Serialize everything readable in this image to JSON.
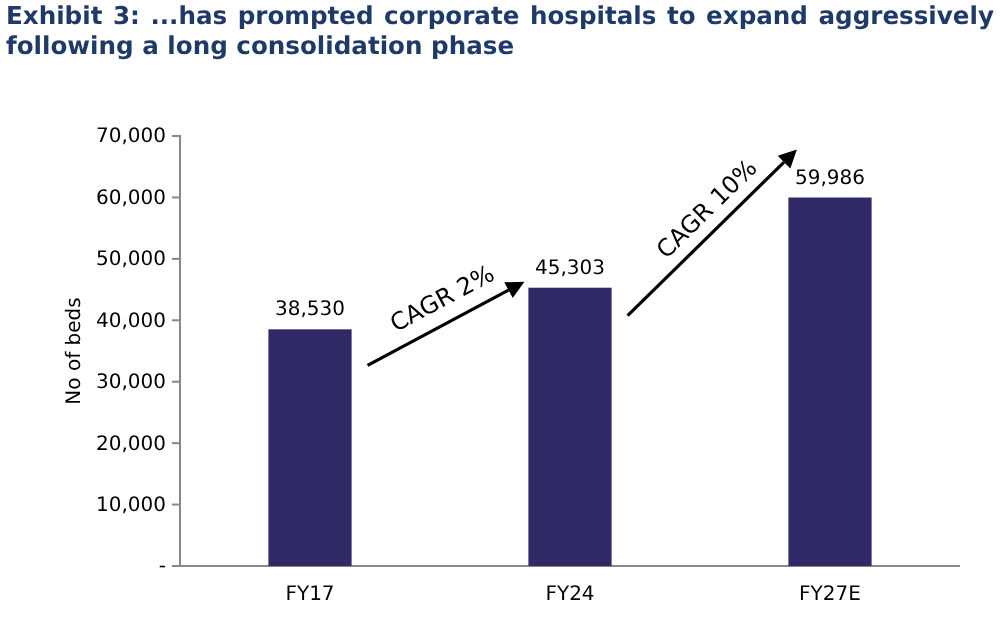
{
  "chart_data": {
    "type": "bar",
    "title": "Exhibit 3: ...has prompted corporate hospitals to expand aggressively following a long consolidation phase",
    "ylabel": "No of beds",
    "categories": [
      "FY17",
      "FY24",
      "FY27E"
    ],
    "values": [
      38530,
      45303,
      59986
    ],
    "color": "#2f2a66",
    "data_labels": true,
    "value_labels": [
      "38,530",
      "45,303",
      "59,986"
    ],
    "ylim": [
      0,
      70000
    ],
    "yticks": [
      {
        "value": 0,
        "label": "-"
      },
      {
        "value": 10000,
        "label": "10,000"
      },
      {
        "value": 20000,
        "label": "20,000"
      },
      {
        "value": 30000,
        "label": "30,000"
      },
      {
        "value": 40000,
        "label": "40,000"
      },
      {
        "value": 50000,
        "label": "50,000"
      },
      {
        "value": 60000,
        "label": "60,000"
      },
      {
        "value": 70000,
        "label": "70,000"
      }
    ],
    "grid": false,
    "annotations": [
      "CAGR 2%",
      "CAGR 10%"
    ]
  }
}
